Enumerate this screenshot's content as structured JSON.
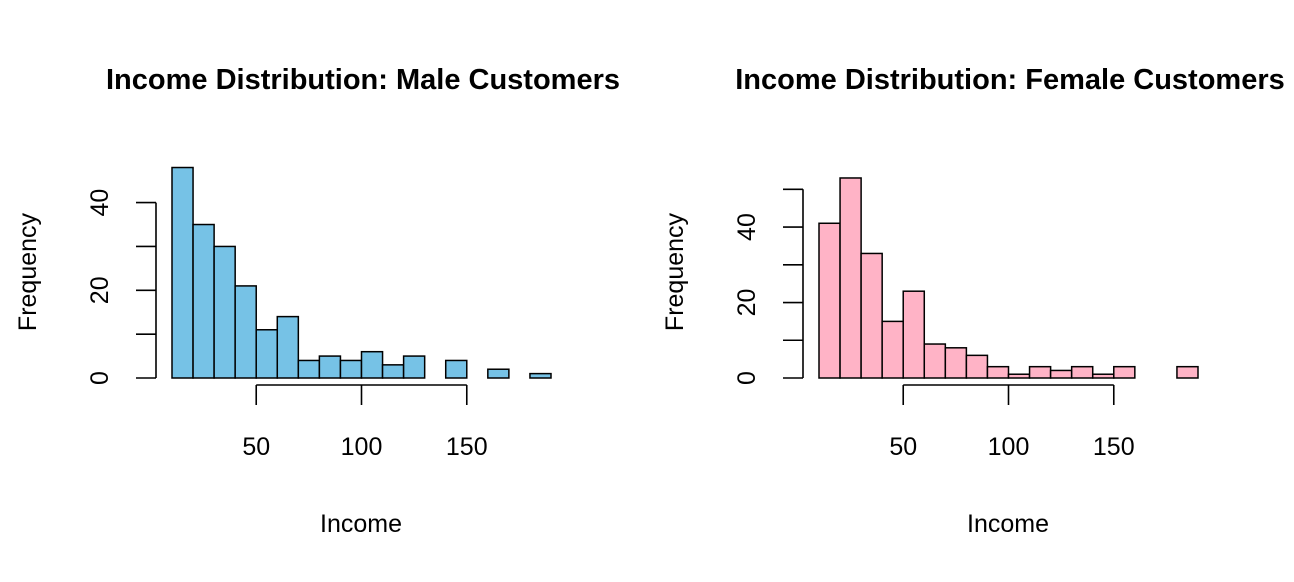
{
  "chart_data": [
    {
      "type": "bar",
      "title": "Income Distribution: Male Customers",
      "xlabel": "Income",
      "ylabel": "Frequency",
      "color": "#76C2E6",
      "bin_width": 10,
      "bins": [
        [
          10,
          20
        ],
        [
          20,
          30
        ],
        [
          30,
          40
        ],
        [
          40,
          50
        ],
        [
          50,
          60
        ],
        [
          60,
          70
        ],
        [
          70,
          80
        ],
        [
          80,
          90
        ],
        [
          90,
          100
        ],
        [
          100,
          110
        ],
        [
          110,
          120
        ],
        [
          120,
          130
        ],
        [
          130,
          140
        ],
        [
          140,
          150
        ],
        [
          150,
          160
        ],
        [
          160,
          170
        ],
        [
          170,
          180
        ],
        [
          180,
          190
        ]
      ],
      "values": [
        48,
        35,
        30,
        21,
        11,
        14,
        4,
        5,
        4,
        6,
        3,
        5,
        0,
        4,
        0,
        2,
        0,
        1
      ],
      "xlim": [
        10,
        190
      ],
      "ylim": [
        0,
        48
      ],
      "x_ticks": [
        50,
        100,
        150
      ],
      "x_tick_labels": [
        "50",
        "100",
        "150"
      ],
      "y_ticks": [
        0,
        10,
        20,
        30,
        40
      ],
      "y_tick_labels": [
        "0",
        "20",
        "40"
      ]
    },
    {
      "type": "bar",
      "title": "Income Distribution: Female Customers",
      "xlabel": "Income",
      "ylabel": "Frequency",
      "color": "#FFB3C6",
      "bin_width": 10,
      "bins": [
        [
          10,
          20
        ],
        [
          20,
          30
        ],
        [
          30,
          40
        ],
        [
          40,
          50
        ],
        [
          50,
          60
        ],
        [
          60,
          70
        ],
        [
          70,
          80
        ],
        [
          80,
          90
        ],
        [
          90,
          100
        ],
        [
          100,
          110
        ],
        [
          110,
          120
        ],
        [
          120,
          130
        ],
        [
          130,
          140
        ],
        [
          140,
          150
        ],
        [
          150,
          160
        ],
        [
          160,
          170
        ],
        [
          170,
          180
        ],
        [
          180,
          190
        ]
      ],
      "values": [
        41,
        53,
        33,
        15,
        23,
        9,
        8,
        6,
        3,
        1,
        3,
        2,
        3,
        1,
        3,
        0,
        0,
        3
      ],
      "xlim": [
        10,
        190
      ],
      "ylim": [
        0,
        53
      ],
      "x_ticks": [
        50,
        100,
        150
      ],
      "x_tick_labels": [
        "50",
        "100",
        "150"
      ],
      "y_ticks": [
        0,
        10,
        20,
        30,
        40,
        50
      ],
      "y_tick_labels": [
        "0",
        "20",
        "40"
      ]
    }
  ]
}
